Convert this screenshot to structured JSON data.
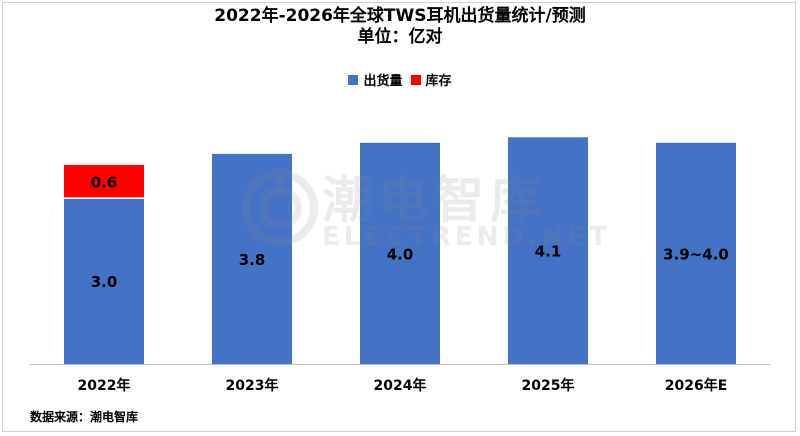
{
  "chart_data": {
    "type": "bar",
    "title": "2022年-2026年全球TWS耳机出货量统计/预测",
    "subtitle": "单位：亿对",
    "categories": [
      "2022年",
      "2023年",
      "2024年",
      "2025年",
      "2026年E"
    ],
    "series": [
      {
        "name": "出货量",
        "color": "#4472C4",
        "values": [
          3.0,
          3.8,
          4.0,
          4.1,
          4.0
        ],
        "labels": [
          "3.0",
          "3.8",
          "4.0",
          "4.1",
          "3.9~4.0"
        ]
      },
      {
        "name": "库存",
        "color": "#FF0000",
        "values": [
          0.6,
          0,
          0,
          0,
          0
        ],
        "labels": [
          "0.6",
          "",
          "",
          "",
          ""
        ]
      }
    ],
    "stacked": true,
    "ylim": [
      0,
      4.8
    ],
    "grid": false,
    "legend": "top-center"
  },
  "watermark": {
    "cn": "潮电智库",
    "en": "ELECTREND.NET"
  },
  "source": "数据来源：潮电智库"
}
